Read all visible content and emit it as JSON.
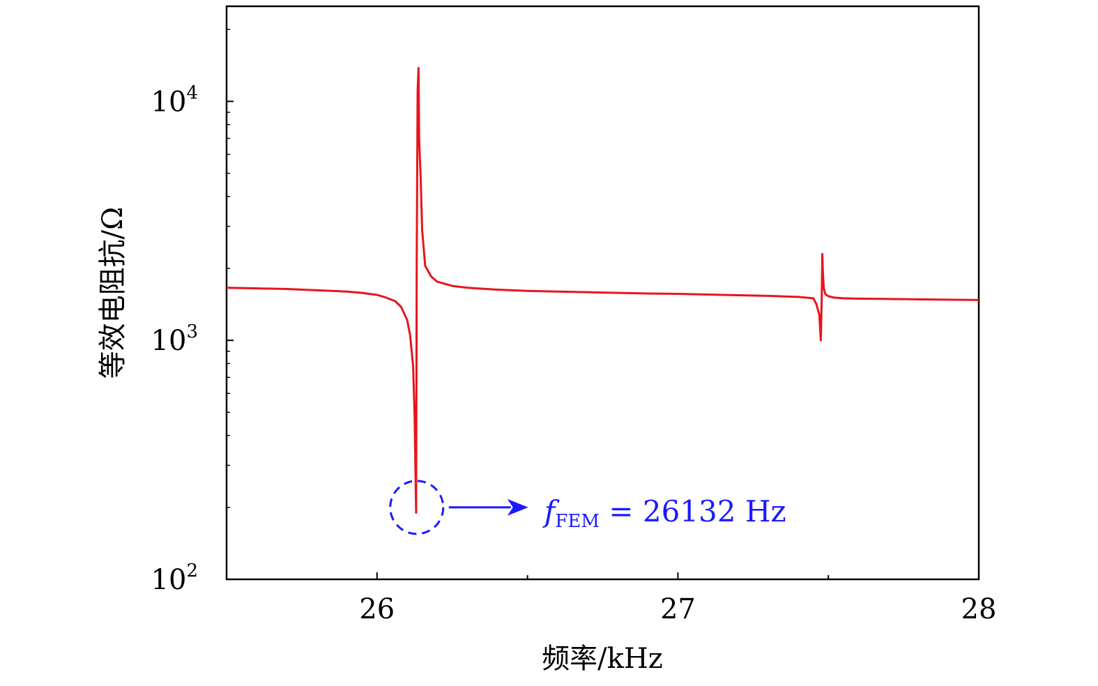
{
  "chart_data": {
    "type": "line",
    "title": "",
    "xlabel": "频率/kHz",
    "ylabel": "等效电阻抗/Ω",
    "x_unit": "kHz",
    "y_unit": "Ω",
    "y_scale": "log",
    "xlim": [
      25.5,
      28.0
    ],
    "ylim": [
      100,
      25000
    ],
    "x_ticks": [
      {
        "value": 26,
        "label": "26"
      },
      {
        "value": 27,
        "label": "27"
      },
      {
        "value": 28,
        "label": "28"
      }
    ],
    "x_minor_ticks": [
      26.5,
      27.5
    ],
    "y_ticks": [
      {
        "value": 100,
        "base": "10",
        "exp": "2"
      },
      {
        "value": 1000,
        "base": "10",
        "exp": "3"
      },
      {
        "value": 10000,
        "base": "10",
        "exp": "4"
      }
    ],
    "grid": false,
    "line_color": "#e8141b",
    "annotation_color": "#1a1aff",
    "series": [
      {
        "x": [
          25.5,
          25.6,
          25.7,
          25.8,
          25.85,
          25.9,
          25.95,
          26.0,
          26.03,
          26.06,
          26.08,
          26.1,
          26.11,
          26.12,
          26.125,
          26.13,
          26.132,
          26.135,
          26.138,
          26.14,
          26.145,
          26.15,
          26.16,
          26.18,
          26.2,
          26.25,
          26.3,
          26.4,
          26.5,
          26.6,
          26.7,
          26.8,
          26.9,
          27.0,
          27.1,
          27.2,
          27.3,
          27.4,
          27.45,
          27.46,
          27.47,
          27.475,
          27.478,
          27.48,
          27.482,
          27.485,
          27.49,
          27.5,
          27.52,
          27.55,
          27.6,
          27.7,
          27.8,
          27.9,
          28.0
        ],
        "y": [
          1660,
          1650,
          1640,
          1620,
          1610,
          1600,
          1580,
          1550,
          1510,
          1460,
          1380,
          1220,
          1050,
          780,
          480,
          190,
          2200,
          11000,
          13800,
          7000,
          4800,
          2900,
          2050,
          1850,
          1760,
          1690,
          1660,
          1630,
          1610,
          1600,
          1590,
          1580,
          1570,
          1565,
          1555,
          1545,
          1535,
          1520,
          1500,
          1420,
          1280,
          1000,
          1500,
          2300,
          1900,
          1650,
          1560,
          1530,
          1510,
          1500,
          1495,
          1490,
          1485,
          1480,
          1475
        ]
      }
    ],
    "annotation": {
      "circle_at": {
        "x": 26.132,
        "y": 200
      },
      "symbol": "f",
      "subscript": "FEM",
      "text": " = 26132 Hz"
    }
  }
}
